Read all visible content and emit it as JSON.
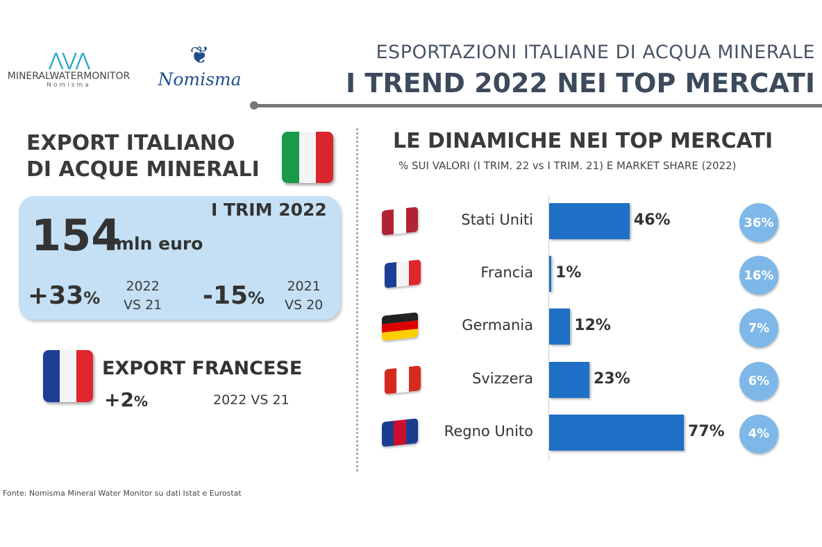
{
  "logos": {
    "mwm": "MINERALWATERMONITOR",
    "mwm_sub": "Nomisma",
    "nomisma": "Nomisma"
  },
  "header": {
    "line1": "ESPORTAZIONI ITALIANE DI ACQUA MINERALE",
    "line2": "I TREND 2022 NEI TOP MERCATI"
  },
  "left": {
    "title1": "EXPORT ITALIANO",
    "title2": "DI ACQUE MINERALI",
    "period": "I TRIM 2022",
    "value": "154",
    "unit": "mln euro",
    "change1": "+33",
    "change1_pct": "%",
    "change1_label1": "2022",
    "change1_label2": "VS 21",
    "change2": "-15",
    "change2_pct": "%",
    "change2_label1": "2021",
    "change2_label2": "VS 20",
    "fr_title": "EXPORT FRANCESE",
    "fr_change": "+2",
    "fr_pct": "%",
    "fr_label": "2022 VS 21"
  },
  "chart_data": {
    "type": "bar",
    "title": "LE DINAMICHE NEI TOP MERCATI",
    "subtitle": "% SUI VALORI (I TRIM. 22  vs I TRIM. 21) E MARKET SHARE (2022)",
    "categories": [
      "Stati Uniti",
      "Francia",
      "Germania",
      "Svizzera",
      "Regno Unito"
    ],
    "values": [
      46,
      1,
      12,
      23,
      77
    ],
    "value_labels": [
      "46%",
      "1%",
      "12%",
      "23%",
      "77%"
    ],
    "market_share": [
      36,
      16,
      7,
      6,
      4
    ],
    "market_share_labels": [
      "36%",
      "16%",
      "7%",
      "6%",
      "4%"
    ],
    "flags": [
      "usa-flag",
      "france-flag",
      "germany-flag",
      "canada-flag",
      "uk-flag"
    ],
    "bar_color": "#1f6fc6",
    "share_color": "#7db8e8"
  },
  "source": "Fonte: Nomisma Mineral Water Monitor su dati Istat e Eurostat"
}
